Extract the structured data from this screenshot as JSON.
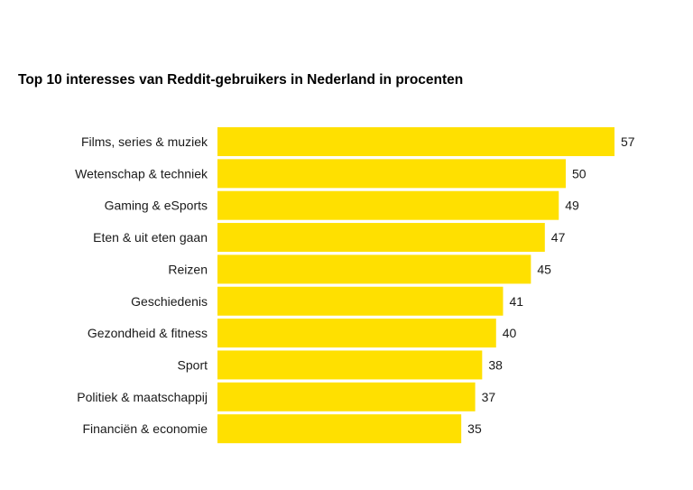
{
  "chart_data": {
    "type": "bar",
    "orientation": "horizontal",
    "title": "Top 10 interesses van Reddit-gebruikers in Nederland in procenten",
    "categories": [
      "Films, series & muziek",
      "Wetenschap & techniek",
      "Gaming & eSports",
      "Eten & uit eten gaan",
      "Reizen",
      "Geschiedenis",
      "Gezondheid & fitness",
      "Sport",
      "Politiek & maatschappij",
      "Financiën & economie"
    ],
    "values": [
      57,
      50,
      49,
      47,
      45,
      41,
      40,
      38,
      37,
      35
    ],
    "xlabel": "",
    "ylabel": "",
    "xlim": [
      0,
      57
    ],
    "grid": false,
    "bar_color": "#FFE000"
  }
}
